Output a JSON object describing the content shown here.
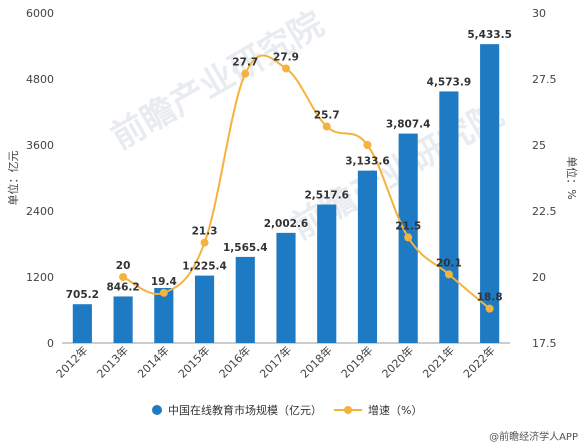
{
  "chart_data": {
    "type": "bar",
    "categories": [
      "2012年",
      "2013年",
      "2014年",
      "2015年",
      "2016年",
      "2017年",
      "2018年",
      "2019年",
      "2020年",
      "2021年",
      "2022年"
    ],
    "series": [
      {
        "name": "中国在线教育市场规模（亿元）",
        "type": "bar",
        "axis": "left",
        "color": "#1f7ac4",
        "values": [
          705.2,
          846.2,
          1000,
          1225.4,
          1565.4,
          2002.6,
          2517.6,
          3133.6,
          3807.4,
          4573.9,
          5433.5
        ],
        "labels": [
          "705.2",
          "846.2",
          "",
          "1,225.4",
          "1,565.4",
          "2,002.6",
          "2,517.6",
          "3,133.6",
          "3,807.4",
          "4,573.9",
          "5,433.5"
        ]
      },
      {
        "name": "增速（%）",
        "type": "line",
        "axis": "right",
        "color": "#f3b33d",
        "values": [
          null,
          20,
          19.4,
          21.3,
          27.7,
          27.9,
          25.7,
          25,
          21.5,
          20.1,
          18.8
        ],
        "labels": [
          "",
          "20",
          "19.4",
          "21.3",
          "27.7",
          "27.9",
          "25.7",
          "",
          "21.5",
          "20.1",
          "18.8"
        ]
      }
    ],
    "ylabel_left": "单位：亿元",
    "ylabel_right": "单位：%",
    "ylim_left": [
      0,
      6000
    ],
    "yticks_left": [
      "0",
      "1200",
      "2400",
      "3600",
      "4800",
      "6000"
    ],
    "ylim_right": [
      17.5,
      30
    ],
    "yticks_right": [
      "17.5",
      "20",
      "22.5",
      "25",
      "27.5",
      "30"
    ],
    "legend_position": "bottom",
    "grid": false
  },
  "legend": {
    "bar_label": "中国在线教育市场规模（亿元）",
    "line_label": "增速（%）"
  },
  "footer": {
    "source": "@前瞻经济学人APP"
  },
  "watermark": {
    "text": "前瞻产业研究院"
  }
}
